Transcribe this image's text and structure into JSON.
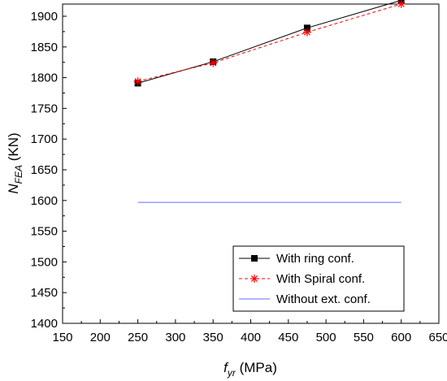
{
  "chart_data": {
    "type": "line",
    "xlabel": {
      "main": "f",
      "sub": "yr",
      "unit": " (MPa)"
    },
    "ylabel": {
      "main": "N",
      "sub": "FEA",
      "unit": " (KN)"
    },
    "xlim": [
      150,
      650
    ],
    "ylim": [
      1400,
      1925
    ],
    "xticks": [
      150,
      200,
      250,
      300,
      350,
      400,
      450,
      500,
      550,
      600,
      650
    ],
    "yticks": [
      1400,
      1450,
      1500,
      1550,
      1600,
      1650,
      1700,
      1750,
      1800,
      1850,
      1900
    ],
    "grid": false,
    "legend_position": "bottom-right",
    "series": [
      {
        "name": "With ring conf.",
        "color": "#000000",
        "line": "solid",
        "marker": "square",
        "x": [
          250,
          350,
          475,
          600
        ],
        "y": [
          1791,
          1826,
          1881,
          1926
        ]
      },
      {
        "name": "With Spiral conf.",
        "color": "#ff0000",
        "line": "dashed",
        "marker": "asterisk",
        "x": [
          250,
          350,
          475,
          600
        ],
        "y": [
          1794,
          1824,
          1874,
          1920
        ]
      },
      {
        "name": "Without  ext. conf.",
        "color": "#6a6aff",
        "line": "solid",
        "marker": "none",
        "x": [
          250,
          600
        ],
        "y": [
          1597,
          1597
        ]
      }
    ]
  }
}
